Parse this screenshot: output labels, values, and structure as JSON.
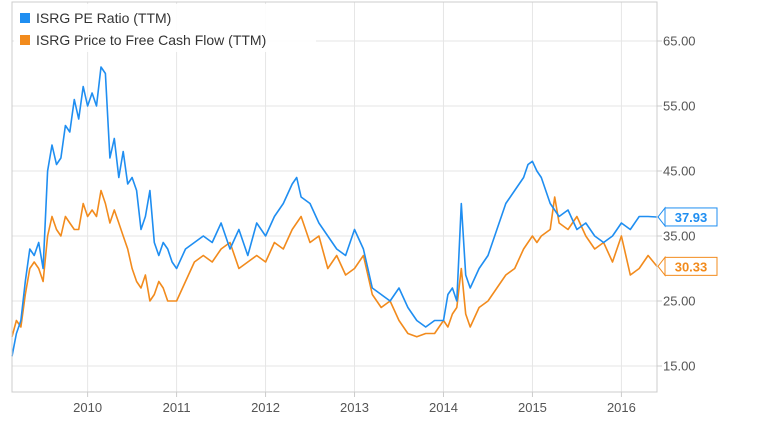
{
  "chart_data": {
    "type": "line",
    "title": "",
    "xlabel": "",
    "ylabel": "",
    "xlim": [
      2009.15,
      2016.4
    ],
    "ylim": [
      11,
      71
    ],
    "grid": true,
    "legend_position": "top-left",
    "x_ticks": [
      2010,
      2011,
      2012,
      2013,
      2014,
      2015,
      2016
    ],
    "x_tick_labels": [
      "2010",
      "2011",
      "2012",
      "2013",
      "2014",
      "2015",
      "2016"
    ],
    "y_ticks": [
      15,
      25,
      35,
      45,
      55,
      65
    ],
    "y_tick_labels": [
      "15.00",
      "25.00",
      "35.00",
      "45.00",
      "55.00",
      "65.00"
    ],
    "series": [
      {
        "name": "ISRG PE Ratio (TTM)",
        "color": "#1f8ef1",
        "last_value_label": "37.93",
        "last_value": 37.93,
        "points": [
          [
            2009.15,
            16.5
          ],
          [
            2009.2,
            20
          ],
          [
            2009.25,
            22
          ],
          [
            2009.3,
            28
          ],
          [
            2009.35,
            33
          ],
          [
            2009.4,
            32
          ],
          [
            2009.45,
            34
          ],
          [
            2009.5,
            30
          ],
          [
            2009.55,
            45
          ],
          [
            2009.6,
            49
          ],
          [
            2009.65,
            46
          ],
          [
            2009.7,
            47
          ],
          [
            2009.75,
            52
          ],
          [
            2009.8,
            51
          ],
          [
            2009.85,
            56
          ],
          [
            2009.9,
            53
          ],
          [
            2009.95,
            58
          ],
          [
            2010.0,
            55
          ],
          [
            2010.05,
            57
          ],
          [
            2010.1,
            55
          ],
          [
            2010.15,
            61
          ],
          [
            2010.2,
            60
          ],
          [
            2010.25,
            47
          ],
          [
            2010.3,
            50
          ],
          [
            2010.35,
            44
          ],
          [
            2010.4,
            48
          ],
          [
            2010.45,
            43
          ],
          [
            2010.5,
            44
          ],
          [
            2010.55,
            42
          ],
          [
            2010.6,
            36
          ],
          [
            2010.65,
            38
          ],
          [
            2010.7,
            42
          ],
          [
            2010.75,
            34
          ],
          [
            2010.8,
            32
          ],
          [
            2010.85,
            34
          ],
          [
            2010.9,
            33
          ],
          [
            2010.95,
            31
          ],
          [
            2011.0,
            30
          ],
          [
            2011.1,
            33
          ],
          [
            2011.2,
            34
          ],
          [
            2011.3,
            35
          ],
          [
            2011.4,
            34
          ],
          [
            2011.5,
            37
          ],
          [
            2011.6,
            33
          ],
          [
            2011.7,
            36
          ],
          [
            2011.8,
            32
          ],
          [
            2011.9,
            37
          ],
          [
            2012.0,
            35
          ],
          [
            2012.1,
            38
          ],
          [
            2012.2,
            40
          ],
          [
            2012.3,
            43
          ],
          [
            2012.35,
            44
          ],
          [
            2012.4,
            41
          ],
          [
            2012.5,
            40
          ],
          [
            2012.6,
            37
          ],
          [
            2012.7,
            35
          ],
          [
            2012.8,
            33
          ],
          [
            2012.9,
            32
          ],
          [
            2013.0,
            36
          ],
          [
            2013.1,
            33
          ],
          [
            2013.2,
            27
          ],
          [
            2013.3,
            26
          ],
          [
            2013.4,
            25
          ],
          [
            2013.5,
            27
          ],
          [
            2013.6,
            24
          ],
          [
            2013.7,
            22
          ],
          [
            2013.8,
            21
          ],
          [
            2013.9,
            22
          ],
          [
            2014.0,
            22
          ],
          [
            2014.05,
            26
          ],
          [
            2014.1,
            27
          ],
          [
            2014.15,
            25
          ],
          [
            2014.2,
            40
          ],
          [
            2014.25,
            29
          ],
          [
            2014.3,
            27
          ],
          [
            2014.4,
            30
          ],
          [
            2014.5,
            32
          ],
          [
            2014.6,
            36
          ],
          [
            2014.7,
            40
          ],
          [
            2014.8,
            42
          ],
          [
            2014.9,
            44
          ],
          [
            2014.95,
            46
          ],
          [
            2015.0,
            46.5
          ],
          [
            2015.05,
            45
          ],
          [
            2015.1,
            44
          ],
          [
            2015.2,
            40
          ],
          [
            2015.3,
            38
          ],
          [
            2015.4,
            39
          ],
          [
            2015.5,
            36
          ],
          [
            2015.6,
            37
          ],
          [
            2015.7,
            35
          ],
          [
            2015.8,
            34
          ],
          [
            2015.9,
            35
          ],
          [
            2016.0,
            37
          ],
          [
            2016.1,
            36
          ],
          [
            2016.2,
            38
          ],
          [
            2016.3,
            38
          ],
          [
            2016.4,
            37.93
          ]
        ]
      },
      {
        "name": "ISRG Price to Free Cash Flow (TTM)",
        "color": "#f28b1d",
        "last_value_label": "30.33",
        "last_value": 30.33,
        "points": [
          [
            2009.15,
            19.5
          ],
          [
            2009.2,
            22
          ],
          [
            2009.25,
            21
          ],
          [
            2009.3,
            26
          ],
          [
            2009.35,
            30
          ],
          [
            2009.4,
            31
          ],
          [
            2009.45,
            30
          ],
          [
            2009.5,
            28
          ],
          [
            2009.55,
            35
          ],
          [
            2009.6,
            38
          ],
          [
            2009.65,
            36
          ],
          [
            2009.7,
            35
          ],
          [
            2009.75,
            38
          ],
          [
            2009.8,
            37
          ],
          [
            2009.85,
            36
          ],
          [
            2009.9,
            36
          ],
          [
            2009.95,
            40
          ],
          [
            2010.0,
            38
          ],
          [
            2010.05,
            39
          ],
          [
            2010.1,
            38
          ],
          [
            2010.15,
            42
          ],
          [
            2010.2,
            40
          ],
          [
            2010.25,
            37
          ],
          [
            2010.3,
            39
          ],
          [
            2010.35,
            37
          ],
          [
            2010.4,
            35
          ],
          [
            2010.45,
            33
          ],
          [
            2010.5,
            30
          ],
          [
            2010.55,
            28
          ],
          [
            2010.6,
            27
          ],
          [
            2010.65,
            29
          ],
          [
            2010.7,
            25
          ],
          [
            2010.75,
            26
          ],
          [
            2010.8,
            28
          ],
          [
            2010.85,
            27
          ],
          [
            2010.9,
            25
          ],
          [
            2011.0,
            25
          ],
          [
            2011.1,
            28
          ],
          [
            2011.2,
            31
          ],
          [
            2011.3,
            32
          ],
          [
            2011.4,
            31
          ],
          [
            2011.5,
            33
          ],
          [
            2011.6,
            34
          ],
          [
            2011.7,
            30
          ],
          [
            2011.8,
            31
          ],
          [
            2011.9,
            32
          ],
          [
            2012.0,
            31
          ],
          [
            2012.1,
            34
          ],
          [
            2012.2,
            33
          ],
          [
            2012.3,
            36
          ],
          [
            2012.4,
            38
          ],
          [
            2012.5,
            34
          ],
          [
            2012.6,
            35
          ],
          [
            2012.7,
            30
          ],
          [
            2012.8,
            32
          ],
          [
            2012.9,
            29
          ],
          [
            2013.0,
            30
          ],
          [
            2013.1,
            32
          ],
          [
            2013.2,
            26
          ],
          [
            2013.3,
            24
          ],
          [
            2013.4,
            25
          ],
          [
            2013.5,
            22
          ],
          [
            2013.6,
            20
          ],
          [
            2013.7,
            19.5
          ],
          [
            2013.8,
            20
          ],
          [
            2013.9,
            20
          ],
          [
            2014.0,
            22
          ],
          [
            2014.05,
            21
          ],
          [
            2014.1,
            23
          ],
          [
            2014.15,
            24
          ],
          [
            2014.2,
            30
          ],
          [
            2014.25,
            23
          ],
          [
            2014.3,
            21
          ],
          [
            2014.4,
            24
          ],
          [
            2014.5,
            25
          ],
          [
            2014.6,
            27
          ],
          [
            2014.7,
            29
          ],
          [
            2014.8,
            30
          ],
          [
            2014.9,
            33
          ],
          [
            2015.0,
            35
          ],
          [
            2015.05,
            34
          ],
          [
            2015.1,
            35
          ],
          [
            2015.2,
            36
          ],
          [
            2015.25,
            41
          ],
          [
            2015.3,
            37
          ],
          [
            2015.4,
            36
          ],
          [
            2015.5,
            38
          ],
          [
            2015.6,
            35
          ],
          [
            2015.7,
            33
          ],
          [
            2015.8,
            34
          ],
          [
            2015.9,
            31
          ],
          [
            2016.0,
            35
          ],
          [
            2016.1,
            29
          ],
          [
            2016.2,
            30
          ],
          [
            2016.3,
            32
          ],
          [
            2016.4,
            30.33
          ]
        ]
      }
    ]
  }
}
